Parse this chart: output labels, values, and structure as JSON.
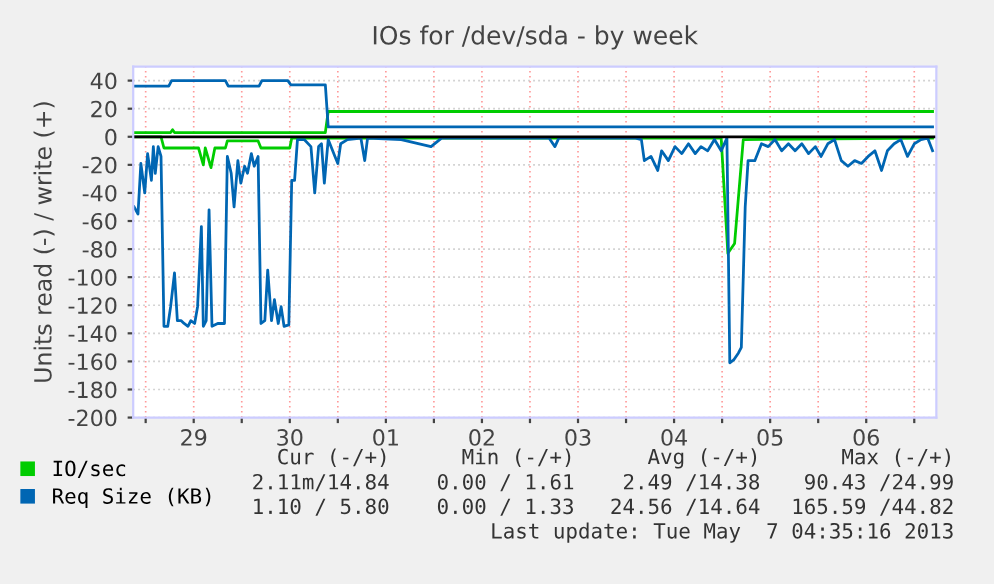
{
  "chart_data": {
    "type": "line",
    "title": "IOs for /dev/sda - by week",
    "ylabel": "Units read (-) / write (+)",
    "xlim": [
      "2013-04-28T20:53",
      "2013-05-07T05:31"
    ],
    "ylim": [
      -200,
      50
    ],
    "xticks": [
      {
        "value": "2013-04-29T00:00",
        "label": null
      },
      {
        "value": "2013-04-29T12:00",
        "label": "29"
      },
      {
        "value": "2013-04-30T00:00",
        "label": null
      },
      {
        "value": "2013-04-30T12:00",
        "label": "30"
      },
      {
        "value": "2013-05-01T00:00",
        "label": null
      },
      {
        "value": "2013-05-01T12:00",
        "label": "01"
      },
      {
        "value": "2013-05-02T00:00",
        "label": null
      },
      {
        "value": "2013-05-02T12:00",
        "label": "02"
      },
      {
        "value": "2013-05-03T00:00",
        "label": null
      },
      {
        "value": "2013-05-03T12:00",
        "label": "03"
      },
      {
        "value": "2013-05-04T00:00",
        "label": null
      },
      {
        "value": "2013-05-04T12:00",
        "label": "04"
      },
      {
        "value": "2013-05-05T00:00",
        "label": null
      },
      {
        "value": "2013-05-05T12:00",
        "label": "05"
      },
      {
        "value": "2013-05-06T00:00",
        "label": null
      },
      {
        "value": "2013-05-06T12:00",
        "label": "06"
      },
      {
        "value": "2013-05-07T00:00",
        "label": null
      }
    ],
    "yticks": [
      -200,
      -180,
      -160,
      -140,
      -120,
      -100,
      -80,
      -60,
      -40,
      -20,
      0,
      20,
      40
    ],
    "grid": true,
    "legend": "bottom",
    "marker": "none",
    "line_style": "solid",
    "series": [
      {
        "name": "IO/sec",
        "color": "#00cc00",
        "x": [
          "2013-04-28T21:07",
          "2013-04-29T03:50",
          "2013-04-29T04:34",
          "2013-04-29T13:12",
          "2013-04-29T14:24",
          "2013-04-29T14:53",
          "2013-04-29T16:19",
          "2013-04-29T17:17",
          "2013-04-29T19:55",
          "2013-04-29T20:24",
          "2013-04-30T04:05",
          "2013-04-30T04:48",
          "2013-04-30T12:00",
          "2013-04-30T12:29",
          "2013-05-04T23:46",
          "2013-05-05T01:26",
          "2013-05-05T03:07",
          "2013-05-05T05:17",
          "2013-05-07T04:34"
        ],
        "values": [
          0,
          0,
          -8,
          -8,
          -20,
          -8,
          -22,
          -8,
          -8,
          -3,
          -3,
          -8,
          -8,
          -1,
          -1,
          -83,
          -76,
          -2,
          -1
        ]
      },
      {
        "color": "#00cc00",
        "x": [
          "2013-04-28T21:07",
          "2013-04-29T06:14",
          "2013-04-29T06:43",
          "2013-04-29T07:12",
          "2013-04-30T20:53",
          "2013-04-30T21:36",
          "2013-05-07T04:34"
        ],
        "values": [
          3,
          3,
          5,
          3,
          3,
          18,
          18
        ]
      },
      {
        "name": "Req Size (KB)",
        "color": "#0066b3",
        "x": [
          "2013-04-28T21:07",
          "2013-04-28T22:05",
          "2013-04-28T22:48",
          "2013-04-28T23:46",
          "2013-04-29T00:29",
          "2013-04-29T01:26",
          "2013-04-29T01:55",
          "2013-04-29T02:24",
          "2013-04-29T03:07",
          "2013-04-29T03:50",
          "2013-04-29T04:34",
          "2013-04-29T05:31",
          "2013-04-29T06:14",
          "2013-04-29T07:12",
          "2013-04-29T07:55",
          "2013-04-29T08:53",
          "2013-04-29T09:36",
          "2013-04-29T10:34",
          "2013-04-29T11:17",
          "2013-04-29T12:14",
          "2013-04-29T12:58",
          "2013-04-29T13:55",
          "2013-04-29T14:24",
          "2013-04-29T15:07",
          "2013-04-29T15:50",
          "2013-04-29T16:34",
          "2013-04-29T18:00",
          "2013-04-29T19:41",
          "2013-04-29T20:24",
          "2013-04-29T21:22",
          "2013-04-29T22:05",
          "2013-04-29T23:02",
          "2013-04-29T23:46",
          "2013-04-30T00:43",
          "2013-04-30T01:26",
          "2013-04-30T02:24",
          "2013-04-30T03:07",
          "2013-04-30T04:05",
          "2013-04-30T04:48",
          "2013-04-30T05:46",
          "2013-04-30T06:29",
          "2013-04-30T07:26",
          "2013-04-30T08:10",
          "2013-04-30T09:07",
          "2013-04-30T09:50",
          "2013-04-30T10:34",
          "2013-04-30T11:46",
          "2013-04-30T12:29",
          "2013-04-30T13:12",
          "2013-04-30T13:55",
          "2013-04-30T15:36",
          "2013-04-30T17:17",
          "2013-04-30T18:14",
          "2013-04-30T19:12",
          "2013-04-30T19:55",
          "2013-04-30T20:38",
          "2013-04-30T21:36",
          "2013-04-30T23:17",
          "2013-05-01T00:00",
          "2013-05-01T00:43",
          "2013-05-01T02:24",
          "2013-05-01T05:46",
          "2013-05-01T06:43",
          "2013-05-01T07:26",
          "2013-05-01T15:50",
          "2013-05-01T23:17",
          "2013-05-02T01:55",
          "2013-05-02T12:00",
          "2013-05-03T04:48",
          "2013-05-03T06:14",
          "2013-05-03T07:12",
          "2013-05-04T02:24",
          "2013-05-04T03:50",
          "2013-05-04T04:34",
          "2013-05-04T06:14",
          "2013-05-04T07:55",
          "2013-05-04T08:53",
          "2013-05-04T10:34",
          "2013-05-04T12:14",
          "2013-05-04T13:55",
          "2013-05-04T15:36",
          "2013-05-04T17:17",
          "2013-05-04T18:43",
          "2013-05-04T20:24",
          "2013-05-04T22:05",
          "2013-05-04T23:46",
          "2013-05-05T01:12",
          "2013-05-05T01:55",
          "2013-05-05T02:53",
          "2013-05-05T04:05",
          "2013-05-05T04:48",
          "2013-05-05T05:46",
          "2013-05-05T06:29",
          "2013-05-05T08:10",
          "2013-05-05T09:50",
          "2013-05-05T11:31",
          "2013-05-05T13:12",
          "2013-05-05T14:53",
          "2013-05-05T16:34",
          "2013-05-05T18:14",
          "2013-05-05T19:55",
          "2013-05-05T21:36",
          "2013-05-05T23:17",
          "2013-05-06T00:43",
          "2013-05-06T02:24",
          "2013-05-06T04:05",
          "2013-05-06T05:46",
          "2013-05-06T07:26",
          "2013-05-06T09:07",
          "2013-05-06T10:48",
          "2013-05-06T12:29",
          "2013-05-06T14:10",
          "2013-05-06T15:50",
          "2013-05-06T17:17",
          "2013-05-06T18:58",
          "2013-05-06T20:38",
          "2013-05-06T22:19",
          "2013-05-07T00:00",
          "2013-05-07T01:41",
          "2013-05-07T03:22",
          "2013-05-07T04:34"
        ],
        "values": [
          -50,
          -55,
          -19,
          -40,
          -12,
          -31,
          -7,
          -26,
          -7,
          -14,
          -135,
          -135,
          -121,
          -97,
          -131,
          -131,
          -133,
          -135,
          -131,
          -133,
          -121,
          -64,
          -135,
          -131,
          -52,
          -135,
          -133,
          -133,
          -14,
          -26,
          -50,
          -17,
          -33,
          -21,
          -26,
          -12,
          -21,
          -14,
          -133,
          -131,
          -95,
          -131,
          -116,
          -133,
          -121,
          -135,
          -134,
          -31,
          -31,
          -2,
          -2,
          -7,
          -40,
          -7,
          -5,
          -33,
          -2,
          -14,
          -19,
          -5,
          -2,
          -1,
          -17,
          -1,
          -2,
          -7,
          -1,
          -1,
          -1,
          -7,
          -1,
          -1,
          -2,
          -17,
          -14,
          -24,
          -10,
          -17,
          -7,
          -12,
          -5,
          -12,
          -7,
          -10,
          -2,
          -10,
          -1,
          -161,
          -159,
          -154,
          -150,
          -50,
          -17,
          -17,
          -5,
          -7,
          -2,
          -10,
          -5,
          -10,
          -5,
          -12,
          -7,
          -14,
          -5,
          -2,
          -17,
          -21,
          -17,
          -19,
          -14,
          -10,
          -24,
          -10,
          -5,
          -2,
          -14,
          -5,
          -2,
          -1,
          -10
        ]
      },
      {
        "color": "#0066b3",
        "x": [
          "2013-04-28T21:07",
          "2013-04-29T05:46",
          "2013-04-29T06:29",
          "2013-04-29T19:55",
          "2013-04-29T20:38",
          "2013-04-30T04:19",
          "2013-04-30T05:02",
          "2013-04-30T11:31",
          "2013-04-30T12:14",
          "2013-04-30T20:53",
          "2013-04-30T21:36",
          "2013-05-07T04:34"
        ],
        "values": [
          36,
          36,
          40,
          40,
          36,
          36,
          40,
          40,
          37,
          37,
          7,
          7
        ]
      }
    ],
    "annotations": [
      "Cur (-/+)",
      "Min (-/+)",
      "Avg (-/+)",
      "Max (-/+)",
      "2.11m/14.84",
      "0.00 / 1.61",
      "2.49 /14.38",
      "90.43 /24.99",
      "1.10 / 5.80",
      "0.00 / 1.33",
      "24.56 /14.64",
      "165.59 /44.82",
      "Last update: Tue May  7 04:35:16 2013"
    ]
  }
}
